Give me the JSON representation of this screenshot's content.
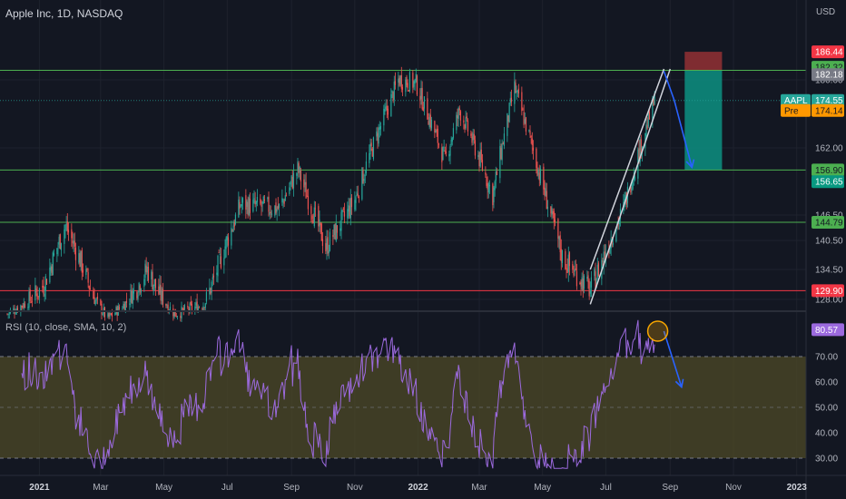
{
  "header": {
    "symbol_title": "Apple Inc, 1D, NASDAQ",
    "currency": "USD",
    "rsi_title": "RSI (10, close, SMA, 10, 2)"
  },
  "colors": {
    "background": "#131722",
    "up": "#26a69a",
    "down": "#ef5350",
    "support_line": "#4caf50",
    "low_line": "#f23645",
    "rsi_line": "#9c6ade",
    "rsi_band": "#4d4a27",
    "arrow": "#2962ff",
    "target_zone": "#0d8a7c",
    "stop_zone": "#8c2f33",
    "circle": "#f7a600"
  },
  "chart_data": [
    {
      "type": "candlestick",
      "name": "AAPL",
      "x_ticks": [
        "2021",
        "Mar",
        "May",
        "Jul",
        "Sep",
        "Nov",
        "2022",
        "Mar",
        "May",
        "Jul",
        "Sep",
        "Nov",
        "2023"
      ],
      "x_tick_dates": [
        "2021-01-01",
        "2021-03-01",
        "2021-05-01",
        "2021-07-01",
        "2021-09-01",
        "2021-11-01",
        "2022-01-01",
        "2022-03-01",
        "2022-05-01",
        "2022-07-01",
        "2022-09-01",
        "2022-11-01",
        "2023-01-01"
      ],
      "y_ticks": [
        128,
        134.5,
        140.5,
        146.5,
        162,
        180
      ],
      "ylim": [
        125,
        190
      ],
      "price_path": [
        [
          "2020-12-01",
          122
        ],
        [
          "2021-01-05",
          131
        ],
        [
          "2021-01-26",
          144
        ],
        [
          "2021-02-10",
          136
        ],
        [
          "2021-03-08",
          120
        ],
        [
          "2021-04-15",
          134.5
        ],
        [
          "2021-05-12",
          122
        ],
        [
          "2021-06-08",
          126
        ],
        [
          "2021-07-14",
          149
        ],
        [
          "2021-08-20",
          148
        ],
        [
          "2021-09-07",
          157
        ],
        [
          "2021-10-04",
          139
        ],
        [
          "2021-11-01",
          150
        ],
        [
          "2021-12-13",
          180
        ],
        [
          "2021-12-30",
          179
        ],
        [
          "2022-01-27",
          159
        ],
        [
          "2022-02-10",
          172
        ],
        [
          "2022-03-14",
          151
        ],
        [
          "2022-04-04",
          178
        ],
        [
          "2022-04-28",
          156
        ],
        [
          "2022-05-20",
          137
        ],
        [
          "2022-06-16",
          130
        ],
        [
          "2022-07-18",
          148
        ],
        [
          "2022-08-17",
          174.5
        ]
      ],
      "horizontal_levels": [
        {
          "price": 182.18,
          "color": "#4caf50"
        },
        {
          "price": 156.9,
          "color": "#4caf50"
        },
        {
          "price": 144.79,
          "color": "#4caf50"
        },
        {
          "price": 129.9,
          "color": "#f23645"
        }
      ],
      "price_badges": [
        {
          "label": "",
          "value": "186.44",
          "price": 186.44,
          "color": "#f23645"
        },
        {
          "label": "",
          "value": "182.32",
          "price": 182.9,
          "color": "#4caf50"
        },
        {
          "label": "",
          "value": "182.18",
          "price": 181.2,
          "color": "#787b86"
        },
        {
          "label": "AAPL",
          "value": "174.55",
          "price": 174.55,
          "color": "#26a69a"
        },
        {
          "label": "Pre",
          "value": "174.14",
          "price": 171.9,
          "color": "#ff9800"
        },
        {
          "label": "",
          "value": "156.90",
          "price": 156.9,
          "color": "#4caf50"
        },
        {
          "label": "",
          "value": "156.65",
          "price": 154.2,
          "color": "#089981"
        },
        {
          "label": "",
          "value": "144.79",
          "price": 144.79,
          "color": "#4caf50"
        },
        {
          "label": "",
          "value": "129.90",
          "price": 129.9,
          "color": "#f23645"
        }
      ],
      "channel": {
        "lower": [
          [
            "2022-06-16",
            126
          ],
          [
            "2022-09-01",
            182.5
          ]
        ],
        "upper": [
          [
            "2022-06-16",
            134.5
          ],
          [
            "2022-08-26",
            182.5
          ]
        ]
      },
      "forecast_arrow": [
        [
          "2022-08-26",
          182
        ],
        [
          "2022-09-05",
          174.5
        ],
        [
          "2022-09-22",
          157.5
        ]
      ],
      "position_tool": {
        "start": "2022-09-15",
        "end": "2022-10-21",
        "stop_top": 186.44,
        "entry": 182.18,
        "target": 156.9
      }
    },
    {
      "type": "line",
      "name": "RSI",
      "y_ticks": [
        30,
        40,
        50,
        60,
        70
      ],
      "ylim": [
        25,
        90
      ],
      "band": [
        30,
        70
      ],
      "last_value": "80.57",
      "forecast_arrow": [
        [
          "2022-08-26",
          80
        ],
        [
          "2022-09-12",
          58
        ]
      ],
      "highlight": {
        "date": "2022-08-20",
        "value": 80
      }
    }
  ]
}
